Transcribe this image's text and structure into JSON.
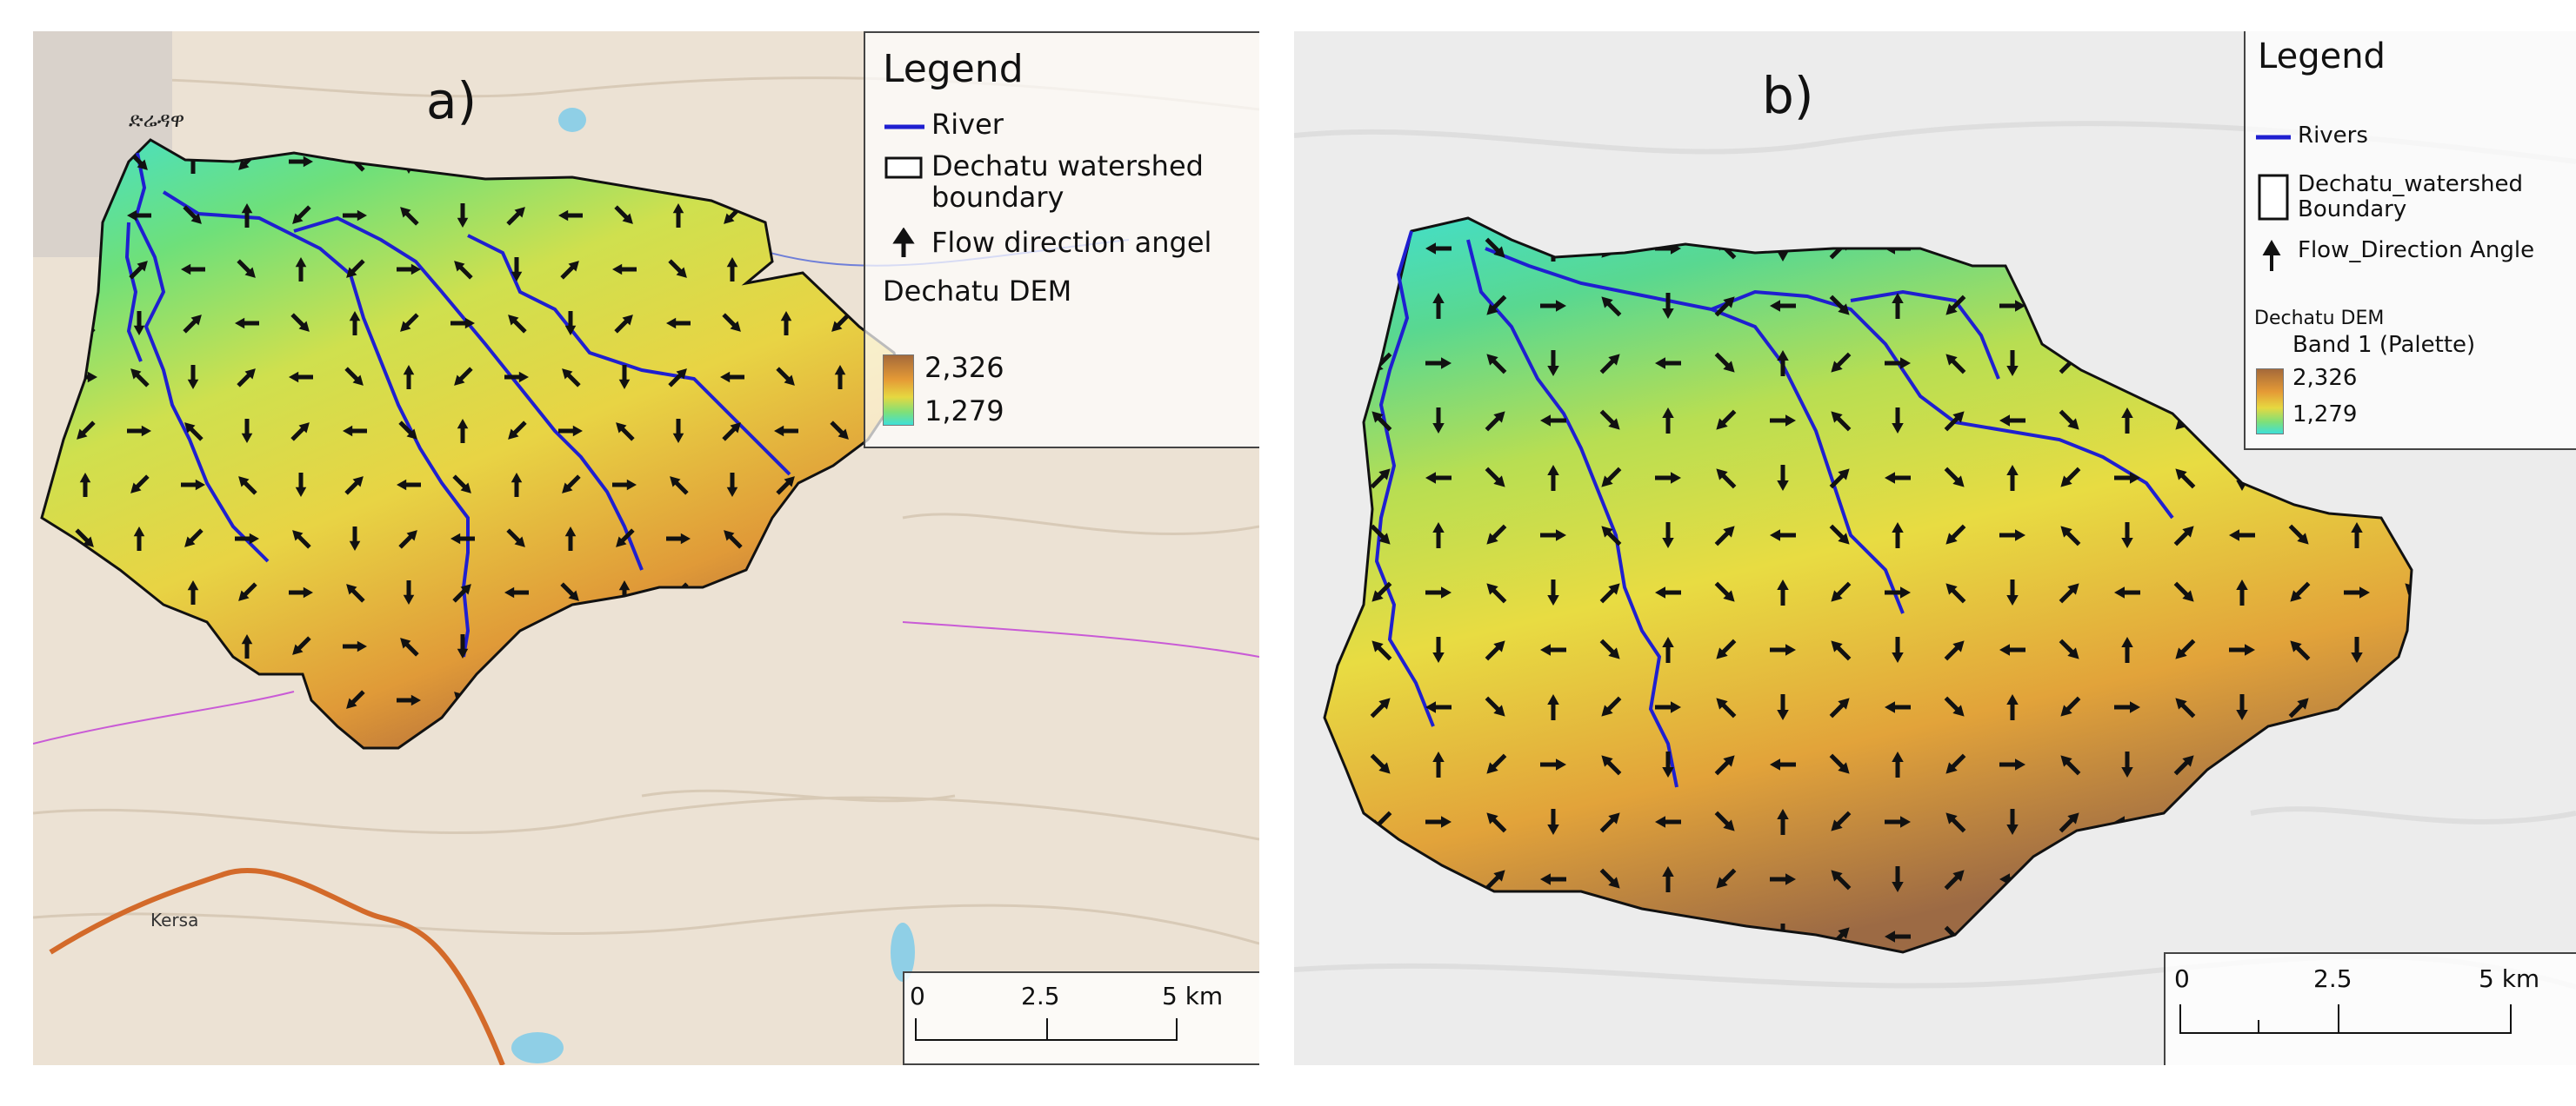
{
  "panels": [
    {
      "letter": "a)",
      "legend": {
        "title": "Legend",
        "river_label": "River",
        "boundary_label": "Dechatu watershed boundary",
        "flow_label": "Flow direction angel",
        "dem_title": "Dechatu DEM",
        "dem_band": "",
        "ramp_max": "2,326",
        "ramp_min": "1,279"
      },
      "scalebar": {
        "labels": [
          "0",
          "2.5",
          "5 km"
        ]
      },
      "map_labels": {
        "city_amharic": "ድሬዳዋ",
        "town": "Kersa"
      }
    },
    {
      "letter": "b)",
      "legend": {
        "title": "Legend",
        "river_label": "Rivers",
        "boundary_label": "Dechatu_watershed Boundary",
        "flow_label": "Flow_Direction Angle",
        "dem_title": "Dechatu DEM",
        "dem_band": "Band 1 (Palette)",
        "ramp_max": "2,326",
        "ramp_min": "1,279"
      },
      "scalebar": {
        "labels": [
          "0",
          "2.5",
          "5 km"
        ]
      }
    }
  ],
  "colors": {
    "river": "#1f1fd0",
    "boundary": "#111111",
    "dem_high": "#a56a3a",
    "dem_mid": "#e6d840",
    "dem_low": "#3ee0d8",
    "road_a": "#d36a2a",
    "admin_line": "#c95bd6"
  },
  "icons": [
    "north-arrow-icon",
    "river-line-icon",
    "boundary-box-icon"
  ]
}
